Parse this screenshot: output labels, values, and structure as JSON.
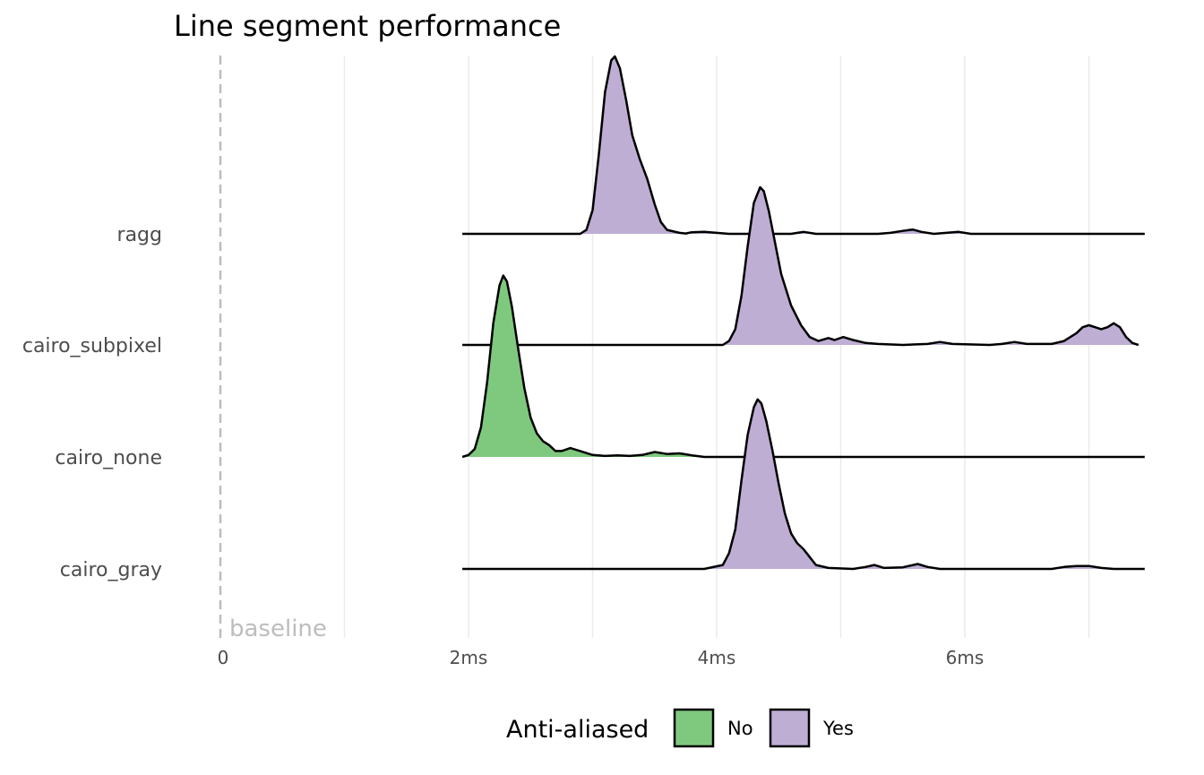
{
  "chart_data": {
    "type": "ridgeline-density",
    "title": "Line segment performance",
    "xlabel": "",
    "ylabel": "",
    "xlim": [
      0,
      7.45
    ],
    "x_ticks": [
      {
        "value": 0,
        "label": "0"
      },
      {
        "value": 2,
        "label": "2ms"
      },
      {
        "value": 4,
        "label": "4ms"
      },
      {
        "value": 6,
        "label": "6ms"
      }
    ],
    "x_minor_ticks": [
      1,
      3,
      5,
      7
    ],
    "grid": true,
    "reference_line": {
      "x": 0,
      "style": "dashed",
      "label": "baseline"
    },
    "legend": {
      "title": "Anti-aliased",
      "position": "bottom",
      "entries": [
        {
          "label": "No",
          "color": "#7fc97f"
        },
        {
          "label": "Yes",
          "color": "#beaed4"
        }
      ]
    },
    "series": [
      {
        "name": "cairo_gray",
        "anti_aliased": "Yes",
        "range": [
          1.95,
          7.45
        ],
        "density": [
          [
            1.95,
            0
          ],
          [
            3.9,
            0
          ],
          [
            4.05,
            0.02
          ],
          [
            4.1,
            0.08
          ],
          [
            4.15,
            0.2
          ],
          [
            4.2,
            0.45
          ],
          [
            4.25,
            0.68
          ],
          [
            4.3,
            0.82
          ],
          [
            4.33,
            0.86
          ],
          [
            4.36,
            0.84
          ],
          [
            4.4,
            0.75
          ],
          [
            4.45,
            0.6
          ],
          [
            4.5,
            0.43
          ],
          [
            4.55,
            0.28
          ],
          [
            4.6,
            0.18
          ],
          [
            4.65,
            0.13
          ],
          [
            4.7,
            0.1
          ],
          [
            4.75,
            0.06
          ],
          [
            4.8,
            0.02
          ],
          [
            4.9,
            0.005
          ],
          [
            5.1,
            0
          ],
          [
            5.2,
            0.01
          ],
          [
            5.27,
            0.02
          ],
          [
            5.35,
            0.005
          ],
          [
            5.5,
            0.008
          ],
          [
            5.62,
            0.025
          ],
          [
            5.7,
            0.01
          ],
          [
            5.8,
            0
          ],
          [
            6.7,
            0
          ],
          [
            6.8,
            0.01
          ],
          [
            6.9,
            0.015
          ],
          [
            7.0,
            0.015
          ],
          [
            7.1,
            0.005
          ],
          [
            7.2,
            0
          ],
          [
            7.45,
            0
          ]
        ]
      },
      {
        "name": "cairo_none",
        "anti_aliased": "No",
        "range": [
          1.95,
          7.45
        ],
        "density": [
          [
            1.95,
            0
          ],
          [
            2.0,
            0.01
          ],
          [
            2.05,
            0.04
          ],
          [
            2.1,
            0.15
          ],
          [
            2.15,
            0.38
          ],
          [
            2.2,
            0.68
          ],
          [
            2.25,
            0.87
          ],
          [
            2.28,
            0.92
          ],
          [
            2.31,
            0.89
          ],
          [
            2.35,
            0.76
          ],
          [
            2.4,
            0.55
          ],
          [
            2.45,
            0.35
          ],
          [
            2.5,
            0.2
          ],
          [
            2.55,
            0.12
          ],
          [
            2.6,
            0.08
          ],
          [
            2.65,
            0.06
          ],
          [
            2.7,
            0.03
          ],
          [
            2.75,
            0.03
          ],
          [
            2.82,
            0.045
          ],
          [
            2.9,
            0.03
          ],
          [
            3.0,
            0.01
          ],
          [
            3.1,
            0.005
          ],
          [
            3.2,
            0.008
          ],
          [
            3.3,
            0.005
          ],
          [
            3.4,
            0.01
          ],
          [
            3.5,
            0.025
          ],
          [
            3.6,
            0.015
          ],
          [
            3.7,
            0.018
          ],
          [
            3.8,
            0.008
          ],
          [
            3.9,
            0
          ],
          [
            7.45,
            0
          ]
        ]
      },
      {
        "name": "cairo_subpixel",
        "anti_aliased": "Yes",
        "range": [
          1.95,
          7.45
        ],
        "density": [
          [
            1.95,
            0
          ],
          [
            4.05,
            0
          ],
          [
            4.1,
            0.02
          ],
          [
            4.15,
            0.08
          ],
          [
            4.2,
            0.25
          ],
          [
            4.25,
            0.5
          ],
          [
            4.3,
            0.72
          ],
          [
            4.35,
            0.8
          ],
          [
            4.38,
            0.78
          ],
          [
            4.42,
            0.68
          ],
          [
            4.47,
            0.52
          ],
          [
            4.52,
            0.36
          ],
          [
            4.6,
            0.2
          ],
          [
            4.68,
            0.1
          ],
          [
            4.75,
            0.04
          ],
          [
            4.82,
            0.02
          ],
          [
            4.9,
            0.035
          ],
          [
            4.95,
            0.025
          ],
          [
            5.02,
            0.04
          ],
          [
            5.1,
            0.025
          ],
          [
            5.2,
            0.01
          ],
          [
            5.3,
            0.005
          ],
          [
            5.5,
            0
          ],
          [
            5.7,
            0.005
          ],
          [
            5.8,
            0.015
          ],
          [
            5.9,
            0.005
          ],
          [
            6.2,
            0
          ],
          [
            6.3,
            0.005
          ],
          [
            6.4,
            0.015
          ],
          [
            6.5,
            0.005
          ],
          [
            6.7,
            0.005
          ],
          [
            6.8,
            0.02
          ],
          [
            6.9,
            0.06
          ],
          [
            6.95,
            0.09
          ],
          [
            7.0,
            0.1
          ],
          [
            7.05,
            0.09
          ],
          [
            7.1,
            0.08
          ],
          [
            7.15,
            0.09
          ],
          [
            7.2,
            0.11
          ],
          [
            7.25,
            0.09
          ],
          [
            7.3,
            0.04
          ],
          [
            7.35,
            0.01
          ],
          [
            7.4,
            0
          ]
        ]
      },
      {
        "name": "ragg",
        "anti_aliased": "Yes",
        "range": [
          1.95,
          7.45
        ],
        "density": [
          [
            1.95,
            0
          ],
          [
            2.9,
            0
          ],
          [
            2.95,
            0.02
          ],
          [
            3.0,
            0.12
          ],
          [
            3.05,
            0.4
          ],
          [
            3.1,
            0.72
          ],
          [
            3.15,
            0.88
          ],
          [
            3.18,
            0.9
          ],
          [
            3.22,
            0.84
          ],
          [
            3.27,
            0.68
          ],
          [
            3.32,
            0.5
          ],
          [
            3.38,
            0.38
          ],
          [
            3.44,
            0.28
          ],
          [
            3.5,
            0.15
          ],
          [
            3.55,
            0.06
          ],
          [
            3.6,
            0.02
          ],
          [
            3.7,
            0.005
          ],
          [
            3.75,
            0.002
          ],
          [
            3.8,
            0.008
          ],
          [
            3.9,
            0.01
          ],
          [
            4.0,
            0.005
          ],
          [
            4.1,
            0
          ],
          [
            4.6,
            0
          ],
          [
            4.7,
            0.01
          ],
          [
            4.8,
            0
          ],
          [
            5.3,
            0
          ],
          [
            5.4,
            0.005
          ],
          [
            5.5,
            0.015
          ],
          [
            5.58,
            0.022
          ],
          [
            5.65,
            0.01
          ],
          [
            5.75,
            0
          ],
          [
            5.85,
            0.005
          ],
          [
            5.95,
            0.01
          ],
          [
            6.05,
            0
          ],
          [
            7.45,
            0
          ]
        ]
      }
    ]
  }
}
